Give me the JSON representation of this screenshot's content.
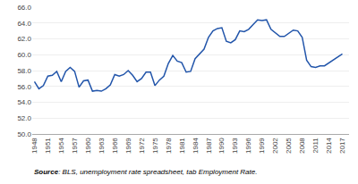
{
  "chart_data": {
    "type": "line",
    "annotation": "Source: BLS, unemployment rate spreadsheet, tab Employment Rate.",
    "color": "#2255AA",
    "grid": true,
    "x": [
      1948,
      1949,
      1950,
      1951,
      1952,
      1953,
      1954,
      1955,
      1956,
      1957,
      1958,
      1959,
      1960,
      1961,
      1962,
      1963,
      1964,
      1965,
      1966,
      1967,
      1968,
      1969,
      1970,
      1971,
      1972,
      1973,
      1974,
      1975,
      1976,
      1977,
      1978,
      1979,
      1980,
      1981,
      1982,
      1983,
      1984,
      1985,
      1986,
      1987,
      1988,
      1989,
      1990,
      1991,
      1992,
      1993,
      1994,
      1995,
      1996,
      1997,
      1998,
      1999,
      2000,
      2001,
      2002,
      2003,
      2004,
      2005,
      2006,
      2007,
      2008,
      2009,
      2010,
      2011,
      2012,
      2013,
      2014,
      2015,
      2016,
      2017
    ],
    "values": [
      56.6,
      55.7,
      56.1,
      57.3,
      57.4,
      57.9,
      56.6,
      57.9,
      58.4,
      57.9,
      55.9,
      56.7,
      56.8,
      55.4,
      55.5,
      55.4,
      55.7,
      56.2,
      57.5,
      57.3,
      57.5,
      58.0,
      57.4,
      56.6,
      57.0,
      57.8,
      57.8,
      56.1,
      56.8,
      57.3,
      58.9,
      59.9,
      59.2,
      59.0,
      57.8,
      57.9,
      59.5,
      60.1,
      60.7,
      62.2,
      63.0,
      63.3,
      63.4,
      61.7,
      61.5,
      61.9,
      63.0,
      62.9,
      63.2,
      63.8,
      64.4,
      64.3,
      64.4,
      63.2,
      62.7,
      62.3,
      62.3,
      62.7,
      63.1,
      63.0,
      62.2,
      59.3,
      58.5,
      58.4,
      58.6,
      58.6,
      59.0,
      59.3,
      59.7,
      60.1
    ],
    "xlim": [
      1947.5,
      2018.5
    ],
    "xticks": [
      1948,
      1951,
      1954,
      1957,
      1960,
      1963,
      1966,
      1969,
      1972,
      1975,
      1978,
      1981,
      1984,
      1987,
      1990,
      1993,
      1996,
      1999,
      2002,
      2005,
      2008,
      2011,
      2014,
      2017
    ],
    "ylim": [
      50,
      66
    ],
    "yticks": [
      {
        "value": 50,
        "label": "50.0"
      },
      {
        "value": 52,
        "label": "52.0"
      },
      {
        "value": 54,
        "label": "54.0"
      },
      {
        "value": 56,
        "label": "56.0"
      },
      {
        "value": 58,
        "label": "58.0"
      },
      {
        "value": 60,
        "label": "60.0"
      },
      {
        "value": 62,
        "label": "62.0"
      },
      {
        "value": 64,
        "label": "64.0"
      },
      {
        "value": 66,
        "label": "66.0"
      }
    ]
  }
}
